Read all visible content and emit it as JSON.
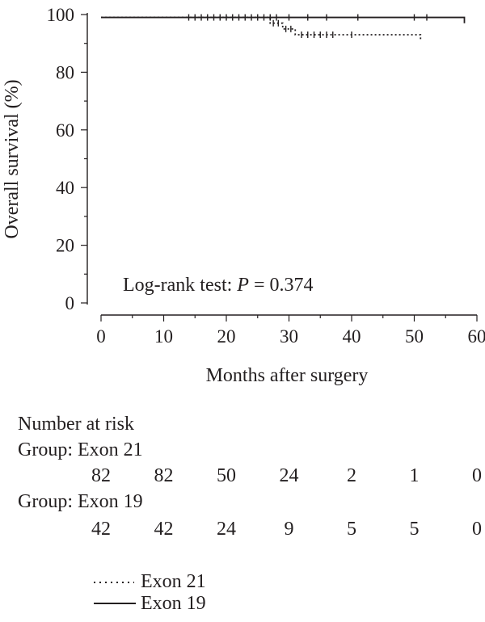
{
  "chart_data": {
    "type": "line",
    "title": "",
    "xlabel": "Months after surgery",
    "ylabel": "Overall survival (%)",
    "xlim": [
      0,
      60
    ],
    "ylim": [
      0,
      100
    ],
    "xticks": [
      0,
      10,
      20,
      30,
      40,
      50,
      60
    ],
    "yticks": [
      0,
      20,
      40,
      60,
      80,
      100
    ],
    "grid": false,
    "annotation": {
      "prefix": "Log-rank test: ",
      "p_symbol": "P",
      "suffix": " = 0.374"
    },
    "series": [
      {
        "name": "Exon 21",
        "style": "dotted",
        "steps": [
          [
            0,
            99
          ],
          [
            27,
            99
          ],
          [
            27,
            97
          ],
          [
            29,
            97
          ],
          [
            29,
            95
          ],
          [
            31,
            95
          ],
          [
            31,
            93
          ],
          [
            51,
            93
          ],
          [
            51,
            91
          ]
        ],
        "censors": [
          [
            14,
            99
          ],
          [
            15,
            99
          ],
          [
            16,
            99
          ],
          [
            17,
            99
          ],
          [
            18,
            99
          ],
          [
            19,
            99
          ],
          [
            20,
            99
          ],
          [
            21,
            99
          ],
          [
            22,
            99
          ],
          [
            23,
            99
          ],
          [
            24,
            99
          ],
          [
            25,
            99
          ],
          [
            26,
            99
          ],
          [
            27.5,
            97
          ],
          [
            28.3,
            97
          ],
          [
            29.5,
            95
          ],
          [
            30.3,
            95
          ],
          [
            32,
            93
          ],
          [
            33,
            93
          ],
          [
            34,
            93
          ],
          [
            35,
            93
          ],
          [
            36,
            93
          ],
          [
            37,
            93
          ],
          [
            40,
            93
          ]
        ]
      },
      {
        "name": "Exon 19",
        "style": "solid",
        "steps": [
          [
            0,
            99
          ],
          [
            58,
            99
          ],
          [
            58,
            97
          ]
        ],
        "censors": [
          [
            27,
            99
          ],
          [
            28,
            99
          ],
          [
            30,
            99
          ],
          [
            33,
            99
          ],
          [
            36,
            99
          ],
          [
            41,
            99
          ],
          [
            50,
            99
          ],
          [
            52,
            99
          ]
        ]
      }
    ]
  },
  "risk_table": {
    "title": "Number at risk",
    "groups": [
      {
        "label": "Group: Exon 21",
        "values": [
          "82",
          "82",
          "50",
          "24",
          "2",
          "1",
          "0"
        ]
      },
      {
        "label": "Group: Exon 19",
        "values": [
          "42",
          "42",
          "24",
          "9",
          "5",
          "5",
          "0"
        ]
      }
    ]
  },
  "legend": {
    "items": [
      {
        "label": "Exon 21",
        "style": "dotted"
      },
      {
        "label": "Exon 19",
        "style": "solid"
      }
    ]
  }
}
